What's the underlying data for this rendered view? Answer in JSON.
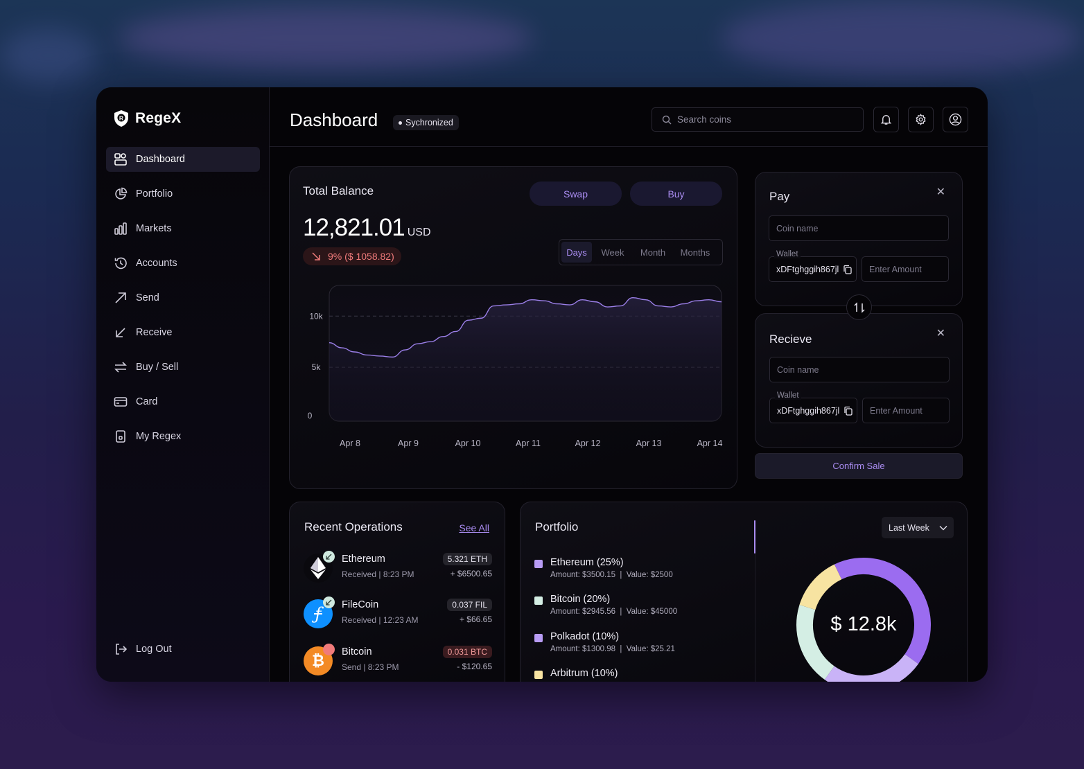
{
  "app": {
    "name": "RegeX"
  },
  "colors": {
    "accent": "#a98cf0",
    "negative": "#f07b7b",
    "background": "#050407"
  },
  "sidebar": {
    "items": [
      {
        "label": "Dashboard",
        "icon": "dashboard-icon",
        "active": true
      },
      {
        "label": "Portfolio",
        "icon": "pie-chart-icon"
      },
      {
        "label": "Markets",
        "icon": "bar-chart-icon"
      },
      {
        "label": "Accounts",
        "icon": "history-icon"
      },
      {
        "label": "Send",
        "icon": "arrow-up-right-icon"
      },
      {
        "label": "Receive",
        "icon": "arrow-down-left-icon"
      },
      {
        "label": "Buy / Sell",
        "icon": "swap-arrows-icon"
      },
      {
        "label": "Card",
        "icon": "credit-card-icon"
      },
      {
        "label": "My Regex",
        "icon": "device-icon"
      }
    ],
    "logout_label": "Log Out"
  },
  "header": {
    "title": "Dashboard",
    "status": "Sychronized",
    "search_placeholder": "Search coins"
  },
  "balance": {
    "title": "Total Balance",
    "swap_label": "Swap",
    "buy_label": "Buy",
    "amount": "12,821.01",
    "unit": "USD",
    "change": "9% ($ 1058.82)",
    "periods": [
      "Days",
      "Week",
      "Month",
      "Months"
    ],
    "active_period": "Days"
  },
  "chart_data": {
    "type": "area",
    "x_labels": [
      "Apr 8",
      "Apr 9",
      "Apr 10",
      "Apr 11",
      "Apr 12",
      "Apr 13",
      "Apr 14"
    ],
    "y_ticks": [
      "10k",
      "5k",
      "0"
    ],
    "ylim": [
      0,
      13000
    ],
    "series": [
      {
        "values": [
          7400,
          6900,
          6500,
          6200,
          6100,
          6000,
          6700,
          7300,
          7500,
          8000,
          8500,
          9600,
          9800,
          11000,
          11100,
          11200,
          11600,
          11500,
          11200,
          11100,
          11600,
          11400,
          10900,
          11000,
          11800,
          11600,
          11000,
          10900,
          11200,
          11500,
          11600,
          11400
        ]
      }
    ],
    "grid": "dashed at 10k and 5k"
  },
  "pay": {
    "title": "Pay",
    "coin_placeholder": "Coin name",
    "wallet_label": "Wallet",
    "wallet_value": "xDFtghggih867jl",
    "amount_placeholder": "Enter Amount"
  },
  "receive": {
    "title": "Recieve",
    "coin_placeholder": "Coin name",
    "wallet_label": "Wallet",
    "wallet_value": "xDFtghggih867jl",
    "amount_placeholder": "Enter Amount"
  },
  "confirm_label": "Confirm Sale",
  "operations": {
    "title": "Recent Operations",
    "see_all": "See All",
    "items": [
      {
        "name": "Ethereum",
        "meta": "Received | 8:23 PM",
        "amount": "5.321 ETH",
        "usd": "+ $6500.65",
        "icon": "ethereum-icon",
        "direction": "received"
      },
      {
        "name": "FileCoin",
        "meta": "Received | 12:23 AM",
        "amount": "0.037 FIL",
        "usd": "+ $66.65",
        "icon": "filecoin-icon",
        "direction": "received"
      },
      {
        "name": "Bitcoin",
        "meta": "Send | 8:23 PM",
        "amount": "0.031 BTC",
        "usd": "- $120.65",
        "icon": "bitcoin-icon",
        "direction": "sent"
      }
    ]
  },
  "portfolio": {
    "title": "Portfolio",
    "period": "Last Week",
    "total": "$ 12.8k",
    "items": [
      {
        "name": "Ethereum (25%)",
        "amount": "Amount: $3500.15",
        "value": "Value: $2500",
        "color": "#b89cf5"
      },
      {
        "name": "Bitcoin (20%)",
        "amount": "Amount: $2945.56",
        "value": "Value: $45000",
        "color": "#d4eee4"
      },
      {
        "name": "Polkadot (10%)",
        "amount": "Amount: $1300.98",
        "value": "Value: $25.21",
        "color": "#b89cf5"
      },
      {
        "name": "Arbitrum (10%)",
        "amount": "",
        "value": "",
        "color": "#f7e3a1"
      }
    ],
    "donut": [
      {
        "fraction": 0.42,
        "color": "#9b6cf0"
      },
      {
        "fraction": 0.25,
        "color": "#c9b3f7"
      },
      {
        "fraction": 0.2,
        "color": "#d4eee4"
      },
      {
        "fraction": 0.13,
        "color": "#f7e3a1"
      }
    ]
  }
}
